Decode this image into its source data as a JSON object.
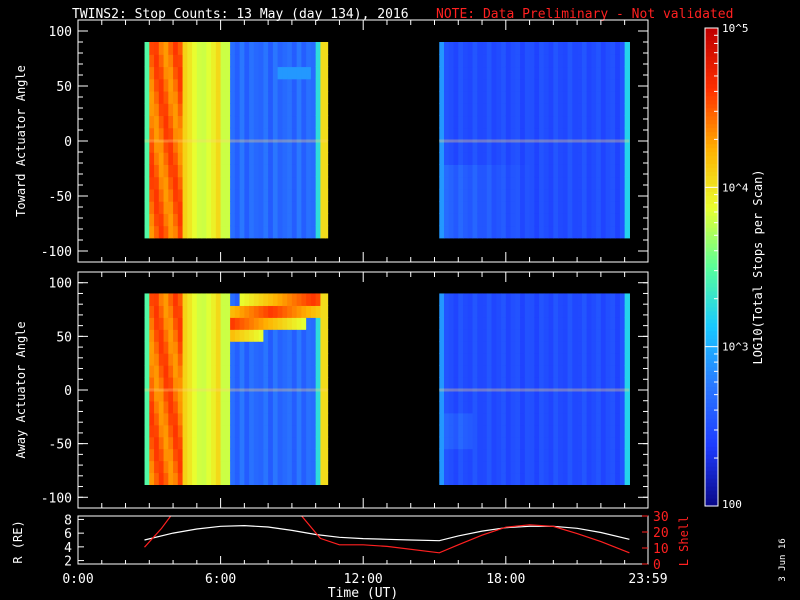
{
  "title": "TWINS2: Stop Counts: 13 May (day 134), 2016",
  "note": "NOTE: Data Preliminary - Not validated",
  "date_stamp": "3 Jun 16",
  "colors": {
    "background": "#000000",
    "axis": "#ffffff",
    "note": "#ff2020",
    "radius_line": "#ffffff",
    "lshell_line": "#ff2020",
    "colormap": [
      "#0a0a8c",
      "#1e3cff",
      "#2a78ff",
      "#18c8ff",
      "#58ff9a",
      "#e8ff30",
      "#ffb000",
      "#ff3000",
      "#c00000"
    ]
  },
  "chart_data": [
    {
      "type": "heatmap",
      "ylabel": "Toward Actuator Angle",
      "ylim": [
        -110,
        110
      ],
      "yticks": [
        "100",
        "50",
        "0",
        "-50",
        "-100"
      ],
      "ytick_values": [
        100,
        50,
        0,
        -50,
        -100
      ],
      "x_range_hours": [
        0,
        23.983
      ],
      "data_blocks_hours": [
        [
          2.8,
          10.5
        ],
        [
          15.2,
          23.2
        ]
      ],
      "angle_range": [
        -88,
        90
      ],
      "colorbar": {
        "label": "LOG10(Total Stops per Scan)",
        "scale": "log",
        "range": [
          100,
          100000
        ],
        "ticks": [
          "100",
          "10^3",
          "10^4",
          "10^5"
        ]
      }
    },
    {
      "type": "heatmap",
      "ylabel": "Away Actuator Angle",
      "ylim": [
        -110,
        110
      ],
      "yticks": [
        "100",
        "50",
        "0",
        "-50",
        "-100"
      ],
      "ytick_values": [
        100,
        50,
        0,
        -50,
        -100
      ],
      "x_range_hours": [
        0,
        23.983
      ],
      "data_blocks_hours": [
        [
          2.8,
          10.5
        ],
        [
          15.2,
          23.2
        ]
      ],
      "angle_range": [
        -88,
        90
      ]
    },
    {
      "type": "line",
      "xlabel": "Time (UT)",
      "xticks": [
        "0:00",
        "6:00",
        "12:00",
        "18:00",
        "23:59"
      ],
      "xtick_values": [
        0,
        6,
        12,
        18,
        23.983
      ],
      "ylabel_left": "R (RE)",
      "ylim_left": [
        1.5,
        8.5
      ],
      "yticks_left": [
        "8",
        "6",
        "4",
        "2"
      ],
      "ylabel_right": "L Shell",
      "ylim_right": [
        0,
        30
      ],
      "yticks_right": [
        "30",
        "20",
        "10",
        "0"
      ],
      "series": [
        {
          "axis": "left",
          "x": [
            2.8,
            4,
            5,
            6,
            7,
            8,
            9,
            10,
            11,
            12,
            13,
            14,
            15.2,
            16,
            17,
            18,
            19,
            20,
            21,
            22,
            23.2
          ],
          "values": [
            5.0,
            6.0,
            6.6,
            7.0,
            7.1,
            6.9,
            6.4,
            5.8,
            5.4,
            5.2,
            5.1,
            5.0,
            4.9,
            5.6,
            6.3,
            6.8,
            7.0,
            7.0,
            6.7,
            6.1,
            5.1
          ]
        },
        {
          "axis": "right",
          "x": [
            2.8,
            3.5,
            4.0,
            9.3,
            10.2,
            11,
            12,
            13,
            15.2,
            16,
            17,
            18,
            19,
            20,
            21,
            22,
            23.2
          ],
          "values": [
            10.5,
            22,
            32,
            32,
            16,
            12,
            12,
            11,
            7,
            12,
            18,
            23,
            24.5,
            23.5,
            19,
            14,
            7
          ]
        }
      ]
    }
  ]
}
